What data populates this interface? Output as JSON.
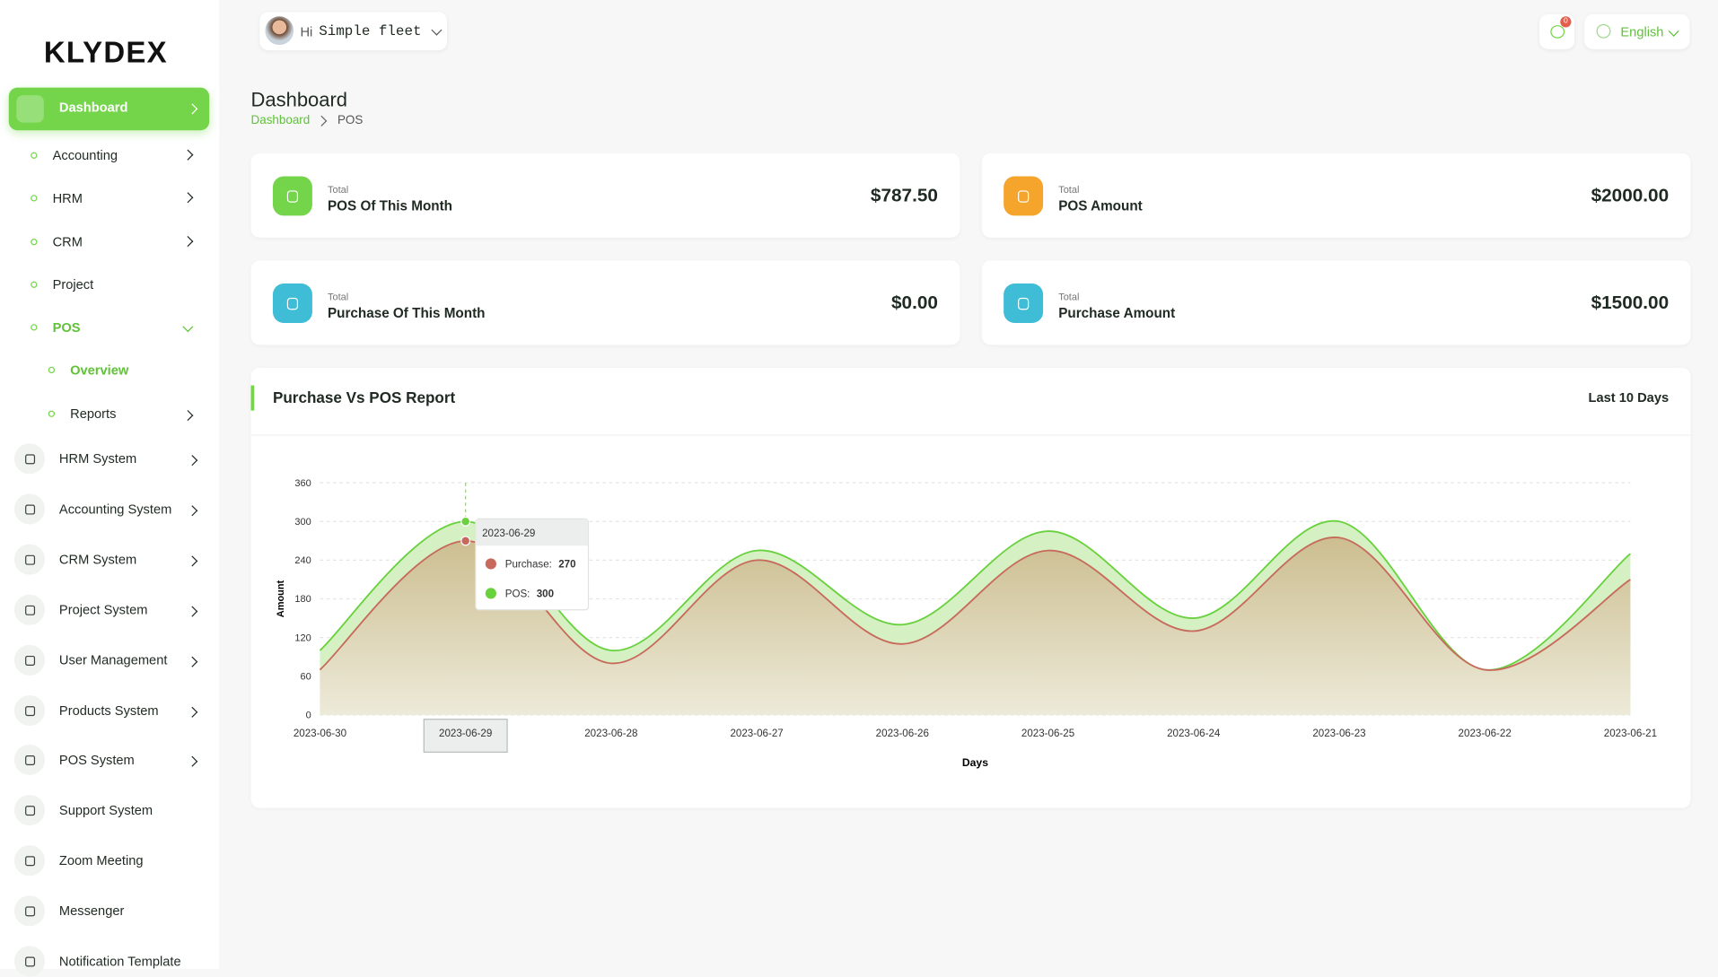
{
  "sidebar": {
    "logo": "KLYDEX",
    "main_item": "Dashboard",
    "submenu": [
      {
        "label": "Accounting",
        "chevron": true
      },
      {
        "label": "HRM",
        "chevron": true
      },
      {
        "label": "CRM",
        "chevron": true
      },
      {
        "label": "Project",
        "chevron": false
      },
      {
        "label": "POS",
        "chevron": true,
        "open": true
      }
    ],
    "open_submenu": [
      {
        "label": "Overview",
        "chevron": false,
        "active": true
      },
      {
        "label": "Reports",
        "chevron": true,
        "active": false
      }
    ],
    "systems": [
      {
        "label": "HRM System",
        "chevron": true
      },
      {
        "label": "Accounting System",
        "chevron": true
      },
      {
        "label": "CRM System",
        "chevron": true
      },
      {
        "label": "Project System",
        "chevron": true
      },
      {
        "label": "User Management",
        "chevron": true
      },
      {
        "label": "Products System",
        "chevron": true
      },
      {
        "label": "POS System",
        "chevron": true
      },
      {
        "label": "Support System",
        "chevron": false
      },
      {
        "label": "Zoom Meeting",
        "chevron": false
      },
      {
        "label": "Messenger",
        "chevron": false
      },
      {
        "label": "Notification Template",
        "chevron": false
      }
    ]
  },
  "header": {
    "greeting": "Hi",
    "user": "Simple fleet",
    "notifications": "0",
    "language": "English"
  },
  "page": {
    "title": "Dashboard",
    "breadcrumb": [
      "Dashboard",
      "POS"
    ]
  },
  "cards": [
    {
      "caption": "Total",
      "title": "POS Of This Month",
      "value": "$787.50",
      "color": "#74d54b"
    },
    {
      "caption": "Total",
      "title": "POS Amount",
      "value": "$2000.00",
      "color": "#f5a42c"
    },
    {
      "caption": "Total",
      "title": "Purchase Of This Month",
      "value": "$0.00",
      "color": "#3fbcd6"
    },
    {
      "caption": "Total",
      "title": "Purchase Amount",
      "value": "$1500.00",
      "color": "#3fbcd6"
    }
  ],
  "report": {
    "title": "Purchase Vs POS Report",
    "period": "Last 10 Days"
  },
  "chart_data": {
    "type": "area",
    "x_label": "Days",
    "y_label": "Amount",
    "categories": [
      "2023-06-30",
      "2023-06-29",
      "2023-06-28",
      "2023-06-27",
      "2023-06-26",
      "2023-06-25",
      "2023-06-24",
      "2023-06-23",
      "2023-06-22",
      "2023-06-21"
    ],
    "series": [
      {
        "name": "Purchase:",
        "color": "#c76a5c",
        "values": [
          70,
          270,
          80,
          240,
          110,
          255,
          130,
          275,
          70,
          210
        ]
      },
      {
        "name": "POS:",
        "color": "#6ad13e",
        "values": [
          100,
          300,
          100,
          255,
          140,
          285,
          150,
          300,
          70,
          250
        ]
      }
    ],
    "ylim": [
      0,
      360
    ],
    "yticks": [
      0,
      60,
      120,
      180,
      240,
      300,
      360
    ],
    "grid": true,
    "tooltip_index": 1
  }
}
